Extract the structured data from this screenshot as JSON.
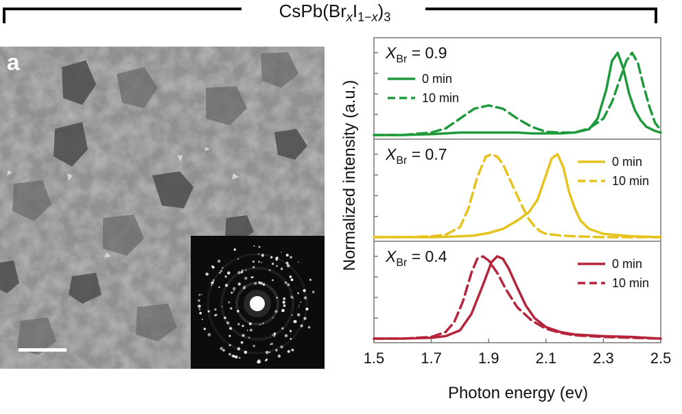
{
  "figure": {
    "compound": {
      "prefix": "CsPb(Br",
      "x1": "x",
      "mid": "I",
      "sub_one_minus": "1−",
      "x2": "x",
      "suffix": ")",
      "sub3": "3"
    },
    "panel_label": "a",
    "colors": {
      "green": "#1e9a3c",
      "yellow": "#e6c21c",
      "red": "#b5243a",
      "frame": "#777777"
    }
  },
  "chart_data": {
    "type": "line",
    "xlabel": "Photon energy (ev)",
    "ylabel": "Normalized intensity (a.u.)",
    "xlim": [
      1.5,
      2.5
    ],
    "xticks": [
      "1.5",
      "1.7",
      "1.9",
      "2.1",
      "2.3",
      "2.5"
    ],
    "xtick_values": [
      1.5,
      1.7,
      1.9,
      2.1,
      2.3,
      2.5
    ],
    "panels": [
      {
        "label_prefix": "X",
        "label_sub": "Br",
        "label_value": " = 0.9",
        "color": "#1e9a3c",
        "legend_position": "top-left",
        "series": [
          {
            "name": "0 min",
            "style": "solid",
            "x": [
              1.5,
              1.6,
              1.7,
              1.75,
              1.8,
              1.85,
              1.9,
              1.95,
              2.0,
              2.05,
              2.1,
              2.15,
              2.2,
              2.25,
              2.28,
              2.31,
              2.33,
              2.35,
              2.37,
              2.39,
              2.41,
              2.43,
              2.45,
              2.48,
              2.5
            ],
            "y": [
              0.0,
              0.0,
              0.01,
              0.02,
              0.03,
              0.03,
              0.03,
              0.03,
              0.03,
              0.02,
              0.02,
              0.02,
              0.03,
              0.07,
              0.2,
              0.55,
              0.9,
              1.0,
              0.8,
              0.5,
              0.3,
              0.18,
              0.1,
              0.05,
              0.03
            ]
          },
          {
            "name": "10 min",
            "style": "dashed",
            "x": [
              1.5,
              1.6,
              1.7,
              1.75,
              1.8,
              1.85,
              1.9,
              1.95,
              2.0,
              2.05,
              2.1,
              2.15,
              2.2,
              2.25,
              2.3,
              2.33,
              2.36,
              2.38,
              2.4,
              2.42,
              2.44,
              2.46,
              2.48,
              2.5
            ],
            "y": [
              0.0,
              0.0,
              0.03,
              0.08,
              0.2,
              0.32,
              0.36,
              0.32,
              0.2,
              0.1,
              0.04,
              0.03,
              0.03,
              0.08,
              0.2,
              0.4,
              0.7,
              0.9,
              1.0,
              0.88,
              0.6,
              0.35,
              0.15,
              0.06
            ]
          }
        ]
      },
      {
        "label_prefix": "X",
        "label_sub": "Br",
        "label_value": " = 0.7",
        "color": "#e6c21c",
        "legend_position": "top-right",
        "series": [
          {
            "name": "0 min",
            "style": "solid",
            "x": [
              1.5,
              1.6,
              1.7,
              1.8,
              1.85,
              1.9,
              1.95,
              2.0,
              2.04,
              2.07,
              2.1,
              2.12,
              2.14,
              2.16,
              2.18,
              2.2,
              2.22,
              2.25,
              2.3,
              2.4,
              2.5
            ],
            "y": [
              0.0,
              0.0,
              0.0,
              0.01,
              0.02,
              0.05,
              0.1,
              0.2,
              0.3,
              0.45,
              0.75,
              0.95,
              1.0,
              0.85,
              0.55,
              0.35,
              0.2,
              0.1,
              0.04,
              0.01,
              0.0
            ]
          },
          {
            "name": "10 min",
            "style": "dashed",
            "x": [
              1.5,
              1.6,
              1.7,
              1.75,
              1.8,
              1.83,
              1.86,
              1.89,
              1.91,
              1.93,
              1.95,
              1.98,
              2.0,
              2.02,
              2.04,
              2.06,
              2.08,
              2.1,
              2.15,
              2.2,
              2.3,
              2.5
            ],
            "y": [
              0.0,
              0.0,
              0.01,
              0.03,
              0.12,
              0.35,
              0.72,
              0.97,
              1.0,
              0.97,
              0.88,
              0.65,
              0.5,
              0.35,
              0.22,
              0.13,
              0.07,
              0.04,
              0.02,
              0.01,
              0.0,
              0.0
            ]
          }
        ]
      },
      {
        "label_prefix": "X",
        "label_sub": "Br",
        "label_value": " = 0.4",
        "color": "#b5243a",
        "legend_position": "top-right",
        "series": [
          {
            "name": "0 min",
            "style": "solid",
            "x": [
              1.5,
              1.6,
              1.7,
              1.75,
              1.8,
              1.84,
              1.88,
              1.91,
              1.93,
              1.95,
              1.97,
              2.0,
              2.03,
              2.06,
              2.1,
              2.15,
              2.2,
              2.3,
              2.4,
              2.5
            ],
            "y": [
              0.0,
              0.0,
              0.01,
              0.03,
              0.1,
              0.3,
              0.65,
              0.93,
              1.0,
              0.97,
              0.85,
              0.62,
              0.4,
              0.25,
              0.14,
              0.08,
              0.05,
              0.03,
              0.02,
              0.0
            ]
          },
          {
            "name": "10 min",
            "style": "dashed",
            "x": [
              1.5,
              1.6,
              1.7,
              1.75,
              1.78,
              1.81,
              1.84,
              1.86,
              1.88,
              1.9,
              1.93,
              1.96,
              2.0,
              2.05,
              2.1,
              2.15,
              2.2,
              2.3,
              2.4,
              2.5
            ],
            "y": [
              0.0,
              0.0,
              0.02,
              0.08,
              0.2,
              0.45,
              0.8,
              0.97,
              1.0,
              0.95,
              0.8,
              0.6,
              0.38,
              0.22,
              0.12,
              0.07,
              0.04,
              0.02,
              0.01,
              0.0
            ]
          }
        ]
      }
    ]
  }
}
